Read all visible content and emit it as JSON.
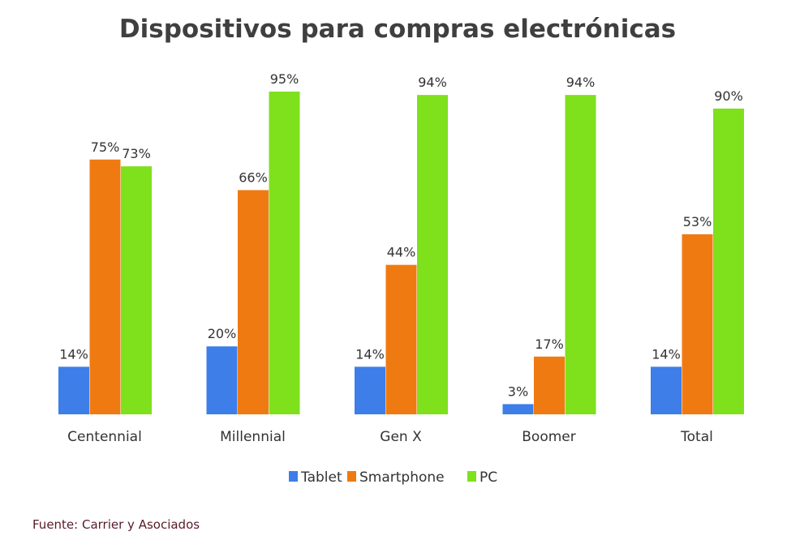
{
  "chart_data": {
    "type": "bar",
    "title": "Dispositivos para compras electrónicas",
    "categories": [
      "Centennial",
      "Millennial",
      "Gen X",
      "Boomer",
      "Total"
    ],
    "series": [
      {
        "name": "Tablet",
        "color": "#3d7ee8",
        "values": [
          14,
          20,
          14,
          3,
          14
        ]
      },
      {
        "name": "Smartphone",
        "color": "#f07a12",
        "values": [
          75,
          66,
          44,
          17,
          53
        ]
      },
      {
        "name": "PC",
        "color": "#7fe01c",
        "values": [
          73,
          95,
          94,
          94,
          90
        ]
      }
    ],
    "value_suffix": "%",
    "ylim": [
      0,
      100
    ],
    "grid": false,
    "legend": "bottom",
    "source": "Fuente: Carrier y Asociados"
  }
}
